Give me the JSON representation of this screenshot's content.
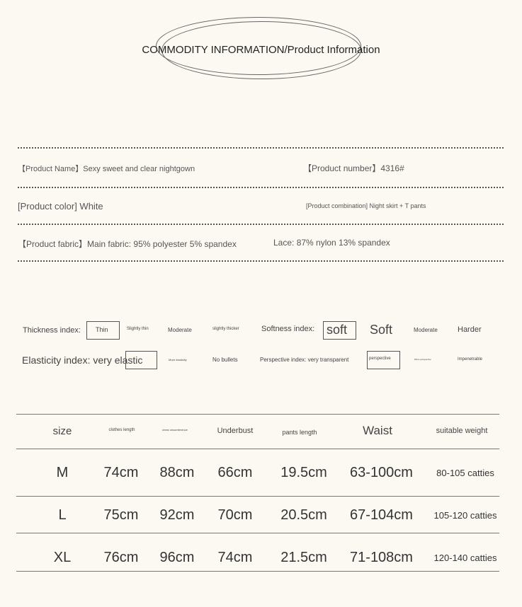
{
  "title": "COMMODITY INFORMATION/Product Information",
  "info": {
    "name": "【Product Name】Sexy sweet and clear nightgown",
    "number": "【Product number】4316#",
    "color": "[Product color] White",
    "combination": "[Product combination] Night skirt + T pants",
    "fabric": "【Product fabric】Main fabric: 95% polyester 5% spandex",
    "lace": "Lace: 87% nylon 13% spandex"
  },
  "indices": {
    "thickness_label": "Thickness index:",
    "thickness": [
      "Thin",
      "Slightly thin",
      "Moderate",
      "slightly thicker"
    ],
    "softness_label": "Softness index:",
    "softness": [
      "soft",
      "Soft",
      "Moderate",
      "Harder"
    ],
    "elasticity_label": "Elasticity index: very elastic",
    "elasticity": [
      "More elasticity",
      "No bullets"
    ],
    "perspective_label": "Perspective index: very transparent",
    "perspective": [
      "perspective",
      "Micro-perspective",
      "Impenetrable"
    ]
  },
  "table": {
    "headers": [
      "size",
      "clothes length",
      "chest circumference",
      "Underbust",
      "pants length",
      "Waist",
      "suitable weight"
    ],
    "rows": [
      [
        "M",
        "74cm",
        "88cm",
        "66cm",
        "19.5cm",
        "63-100cm",
        "80-105 catties"
      ],
      [
        "L",
        "75cm",
        "92cm",
        "70cm",
        "20.5cm",
        "67-104cm",
        "105-120 catties"
      ],
      [
        "XL",
        "76cm",
        "96cm",
        "74cm",
        "21.5cm",
        "71-108cm",
        "120-140 catties"
      ]
    ]
  }
}
